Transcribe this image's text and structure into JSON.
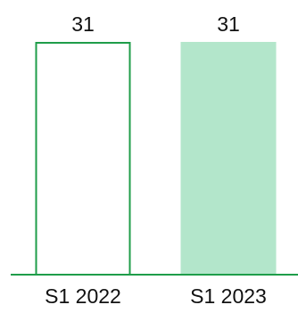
{
  "chart_data": {
    "type": "bar",
    "title": "",
    "xlabel": "",
    "ylabel": "",
    "categories": [
      "S1 2022",
      "S1 2023"
    ],
    "values": [
      31,
      31
    ],
    "data_labels": [
      "31",
      "31"
    ],
    "ylim": [
      0,
      31
    ],
    "grid": false,
    "legend": "none",
    "bar_styles": [
      {
        "fill": "#ffffff",
        "stroke": "#1f9d4a"
      },
      {
        "fill": "#b3e6cb",
        "stroke": "none"
      }
    ],
    "axis_color": "#1f9d4a"
  }
}
